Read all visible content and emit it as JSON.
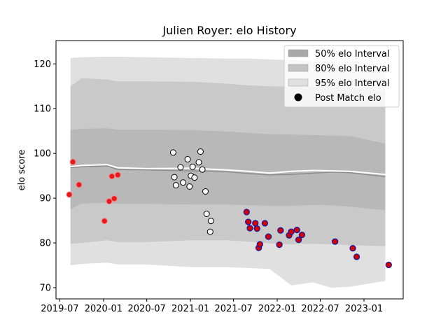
{
  "chart_data": {
    "type": "scatter",
    "title": "Julien Royer: elo History",
    "xlabel": "",
    "ylabel": "elo score",
    "xlim": [
      "2019-06-15",
      "2023-06-15"
    ],
    "ylim": [
      67.5,
      125.2
    ],
    "x_ticks": [
      "2019-07",
      "2020-01",
      "2020-07",
      "2021-01",
      "2021-07",
      "2022-01",
      "2022-07",
      "2023-01"
    ],
    "y_ticks": [
      70,
      80,
      90,
      100,
      110,
      120
    ],
    "grid": false,
    "legend_position": "top-right",
    "legend": [
      {
        "label": "50% elo Interval",
        "kind": "band",
        "color": "#a8a8a8"
      },
      {
        "label": "80% elo Interval",
        "kind": "band",
        "color": "#c4c4c4"
      },
      {
        "label": "95% elo Interval",
        "kind": "band",
        "color": "#e0e0e0"
      },
      {
        "label": "Post Match elo",
        "kind": "marker",
        "color": "#000000"
      }
    ],
    "intervals": {
      "x": [
        "2019-08-15",
        "2019-10-01",
        "2020-01-15",
        "2020-03-01",
        "2020-07-01",
        "2021-01-01",
        "2021-06-01",
        "2021-09-01",
        "2021-12-01",
        "2022-03-01",
        "2022-06-01",
        "2022-08-15",
        "2022-11-01",
        "2023-04-01"
      ],
      "center": [
        96.8,
        97.0,
        97.2,
        96.4,
        96.3,
        96.1,
        95.9,
        95.5,
        95.2,
        95.3,
        95.6,
        95.8,
        95.7,
        94.8
      ],
      "p50": {
        "lower": [
          87.5,
          88.8,
          89.0,
          88.7,
          88.7,
          88.6,
          88.6,
          88.4,
          88.3,
          88.3,
          88.5,
          88.4,
          88.1,
          87.3
        ],
        "upper": [
          105.2,
          105.5,
          105.6,
          105.3,
          105.3,
          105.2,
          104.9,
          104.6,
          104.3,
          104.2,
          104.1,
          104.0,
          103.9,
          102.2
        ]
      },
      "p80": {
        "lower": [
          79.8,
          80.0,
          80.6,
          80.2,
          80.2,
          80.6,
          80.6,
          80.3,
          79.9,
          79.7,
          79.8,
          79.7,
          79.5,
          79.3
        ],
        "upper": [
          115.0,
          116.8,
          116.5,
          116.1,
          116.1,
          116.0,
          115.6,
          115.2,
          115.0,
          114.9,
          114.8,
          114.8,
          114.7,
          113.8
        ]
      },
      "p95": {
        "lower": [
          75.0,
          75.3,
          75.6,
          75.2,
          75.2,
          74.6,
          74.6,
          74.4,
          74.2,
          70.5,
          71.2,
          70.0,
          70.2,
          71.5
        ],
        "upper": [
          121.3,
          121.5,
          121.6,
          121.6,
          121.5,
          121.3,
          121.2,
          121.2,
          121.0,
          120.8,
          120.6,
          120.6,
          120.5,
          120.0
        ]
      }
    },
    "center_line_alt": [
      97.0,
      97.3,
      97.5,
      96.8,
      96.6,
      96.7,
      96.3,
      96.0,
      95.6,
      96.0,
      96.2,
      96.1,
      96.0,
      95.3
    ],
    "series": [
      {
        "name": "Post Match elo",
        "style": "red",
        "points": [
          {
            "x": "2019-08-10",
            "y": 90.8
          },
          {
            "x": "2019-08-25",
            "y": 98.1
          },
          {
            "x": "2019-09-20",
            "y": 93.0
          },
          {
            "x": "2020-01-05",
            "y": 84.9
          },
          {
            "x": "2020-01-25",
            "y": 89.3
          },
          {
            "x": "2020-02-05",
            "y": 94.9
          },
          {
            "x": "2020-02-15",
            "y": 89.9
          },
          {
            "x": "2020-03-01",
            "y": 95.2
          }
        ]
      },
      {
        "name": "Post Match elo",
        "style": "white",
        "points": [
          {
            "x": "2020-10-20",
            "y": 100.2
          },
          {
            "x": "2020-10-25",
            "y": 94.7
          },
          {
            "x": "2020-11-01",
            "y": 92.9
          },
          {
            "x": "2020-11-20",
            "y": 96.9
          },
          {
            "x": "2020-12-01",
            "y": 93.5
          },
          {
            "x": "2020-12-20",
            "y": 98.7
          },
          {
            "x": "2020-12-28",
            "y": 92.6
          },
          {
            "x": "2021-01-03",
            "y": 95.0
          },
          {
            "x": "2021-01-10",
            "y": 97.0
          },
          {
            "x": "2021-01-18",
            "y": 94.6
          },
          {
            "x": "2021-02-05",
            "y": 98.0
          },
          {
            "x": "2021-02-12",
            "y": 100.4
          },
          {
            "x": "2021-02-20",
            "y": 96.4
          },
          {
            "x": "2021-03-05",
            "y": 91.5
          },
          {
            "x": "2021-03-10",
            "y": 86.5
          },
          {
            "x": "2021-03-28",
            "y": 84.9
          },
          {
            "x": "2021-03-25",
            "y": 82.5
          }
        ]
      },
      {
        "name": "Post Match elo",
        "style": "blue-red",
        "points": [
          {
            "x": "2021-08-25",
            "y": 86.9
          },
          {
            "x": "2021-09-01",
            "y": 84.7
          },
          {
            "x": "2021-09-08",
            "y": 83.3
          },
          {
            "x": "2021-10-01",
            "y": 84.4
          },
          {
            "x": "2021-10-08",
            "y": 83.2
          },
          {
            "x": "2021-10-15",
            "y": 78.9
          },
          {
            "x": "2021-10-20",
            "y": 79.7
          },
          {
            "x": "2021-11-10",
            "y": 84.4
          },
          {
            "x": "2021-11-25",
            "y": 81.4
          },
          {
            "x": "2022-01-10",
            "y": 79.6
          },
          {
            "x": "2022-01-15",
            "y": 82.8
          },
          {
            "x": "2022-02-20",
            "y": 81.7
          },
          {
            "x": "2022-03-01",
            "y": 82.5
          },
          {
            "x": "2022-03-25",
            "y": 82.9
          },
          {
            "x": "2022-04-01",
            "y": 80.7
          },
          {
            "x": "2022-04-15",
            "y": 81.8
          },
          {
            "x": "2022-09-01",
            "y": 80.3
          },
          {
            "x": "2022-11-15",
            "y": 78.8
          },
          {
            "x": "2022-12-01",
            "y": 76.9
          },
          {
            "x": "2023-04-15",
            "y": 75.1
          }
        ]
      }
    ]
  }
}
